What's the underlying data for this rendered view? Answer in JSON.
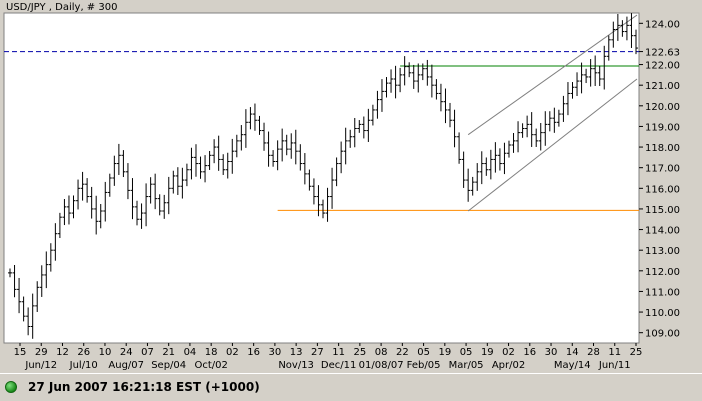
{
  "chart_data": {
    "type": "ohlc",
    "title": "USD/JPY , Daily, # 300",
    "y_axis": {
      "min": 108.5,
      "max": 124.5,
      "position": "right",
      "ticks": [
        "109.00",
        "110.00",
        "111.00",
        "112.00",
        "113.00",
        "114.00",
        "115.00",
        "116.00",
        "117.00",
        "118.00",
        "119.00",
        "120.00",
        "121.00",
        "122.00",
        "122.63",
        "124.00"
      ]
    },
    "x_tick_labels": [
      "15",
      "29",
      "12",
      "26",
      "10",
      "24",
      "07",
      "21",
      "04",
      "18",
      "02",
      "16",
      "30",
      "13",
      "27",
      "11",
      "25",
      "08",
      "22",
      "05",
      "19",
      "05",
      "19",
      "02",
      "16",
      "30",
      "14",
      "28",
      "11",
      "25"
    ],
    "x_month_labels": [
      "Jun/12",
      "Jul/10",
      "Aug/07",
      "Sep/04",
      "Oct/02",
      "Nov/13",
      "Dec/11",
      "01/08/07",
      "Feb/05",
      "Mar/05",
      "Apr/02",
      "May/14",
      "Jun/11"
    ],
    "close_series": [
      111.9,
      111.1,
      110.5,
      109.8,
      109.3,
      110.3,
      111.2,
      111.8,
      112.3,
      113.0,
      113.8,
      114.6,
      115.1,
      114.8,
      115.4,
      116.0,
      116.2,
      115.6,
      115.0,
      114.4,
      114.9,
      115.8,
      116.5,
      117.2,
      117.6,
      116.8,
      115.9,
      115.1,
      114.5,
      114.8,
      115.6,
      116.2,
      115.5,
      114.9,
      115.3,
      116.0,
      116.6,
      116.1,
      116.4,
      116.9,
      117.5,
      117.2,
      116.8,
      117.1,
      117.6,
      118.0,
      117.4,
      116.9,
      117.3,
      117.8,
      118.3,
      118.6,
      119.2,
      119.6,
      119.3,
      118.8,
      118.2,
      117.6,
      117.3,
      117.9,
      118.3,
      117.9,
      118.2,
      117.8,
      117.2,
      116.7,
      116.1,
      115.6,
      115.2,
      114.8,
      115.6,
      116.4,
      117.2,
      117.8,
      118.3,
      118.5,
      118.9,
      119.1,
      118.8,
      119.3,
      119.8,
      120.3,
      120.7,
      121.1,
      121.3,
      121.0,
      121.5,
      121.9,
      121.6,
      121.2,
      121.5,
      121.8,
      121.4,
      121.0,
      120.6,
      120.2,
      119.8,
      119.3,
      118.5,
      117.4,
      116.4,
      115.9,
      116.3,
      116.8,
      117.2,
      116.9,
      117.4,
      117.6,
      117.2,
      117.7,
      118.1,
      118.3,
      118.7,
      118.9,
      119.1,
      118.6,
      118.3,
      118.7,
      119.1,
      119.4,
      119.2,
      119.6,
      120.1,
      120.6,
      120.9,
      121.2,
      121.5,
      121.4,
      121.8,
      121.6,
      121.3,
      122.4,
      123.2,
      123.7,
      123.9,
      123.6,
      123.9,
      123.4,
      122.8
    ],
    "reference_price": {
      "label": "122.63",
      "value": 122.63,
      "style": "dashed",
      "color": "#0000aa"
    },
    "resistance_line": {
      "value": 121.93,
      "color": "#008000"
    },
    "support_line": {
      "value": 114.93,
      "color": "#ff8c00"
    },
    "channel": {
      "color": "#808080"
    }
  },
  "status": {
    "text": "27 Jun 2007 16:21:18 EST (+1000)"
  }
}
